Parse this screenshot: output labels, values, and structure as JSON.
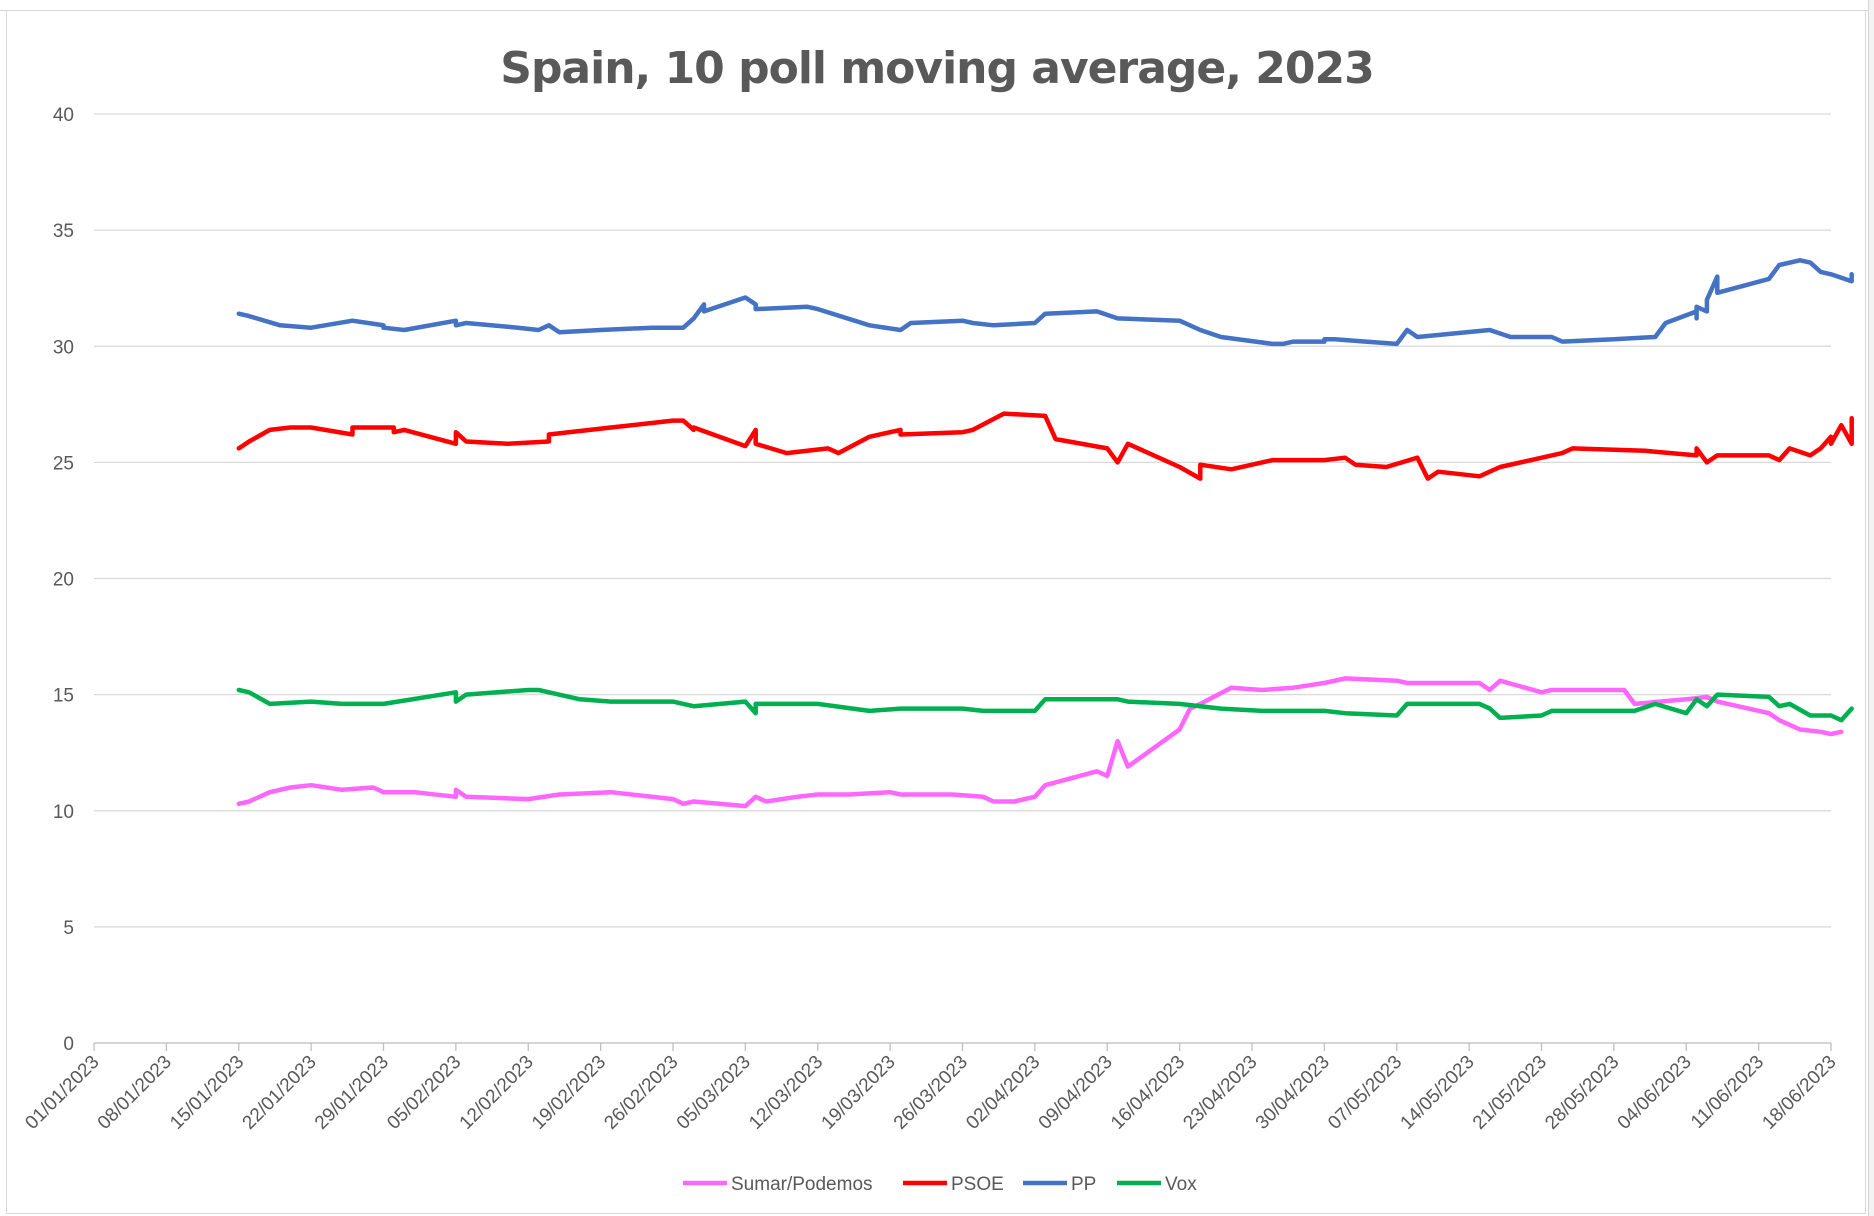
{
  "chart_data": {
    "type": "line",
    "title": "Spain, 10 poll moving average, 2023",
    "xlabel": "",
    "ylabel": "",
    "ylim": [
      0,
      40
    ],
    "y_ticks": [
      "0",
      "5",
      "10",
      "15",
      "20",
      "25",
      "30",
      "35",
      "40"
    ],
    "x_ticks": [
      "01/01/2023",
      "08/01/2023",
      "15/01/2023",
      "22/01/2023",
      "29/01/2023",
      "05/02/2023",
      "12/02/2023",
      "19/02/2023",
      "26/02/2023",
      "05/03/2023",
      "12/03/2023",
      "19/03/2023",
      "26/03/2023",
      "02/04/2023",
      "09/04/2023",
      "16/04/2023",
      "23/04/2023",
      "30/04/2023",
      "07/05/2023",
      "14/05/2023",
      "21/05/2023",
      "28/05/2023",
      "04/06/2023",
      "11/06/2023",
      "18/06/2023"
    ],
    "x_start": "01/01/2023",
    "x_end": "18/06/2023",
    "grid": true,
    "legend_position": "bottom",
    "series": [
      {
        "name": "Sumar/Podemos",
        "color": "#FF66FF",
        "points": [
          [
            "15/01/2023",
            10.3
          ],
          [
            "16/01/2023",
            10.4
          ],
          [
            "18/01/2023",
            10.8
          ],
          [
            "20/01/2023",
            11.0
          ],
          [
            "22/01/2023",
            11.1
          ],
          [
            "25/01/2023",
            10.9
          ],
          [
            "28/01/2023",
            11.0
          ],
          [
            "29/01/2023",
            10.8
          ],
          [
            "01/02/2023",
            10.8
          ],
          [
            "05/02/2023",
            10.6
          ],
          [
            "05/02/2023",
            10.9
          ],
          [
            "06/02/2023",
            10.6
          ],
          [
            "12/02/2023",
            10.5
          ],
          [
            "15/02/2023",
            10.7
          ],
          [
            "20/02/2023",
            10.8
          ],
          [
            "26/02/2023",
            10.5
          ],
          [
            "27/02/2023",
            10.3
          ],
          [
            "28/02/2023",
            10.4
          ],
          [
            "05/03/2023",
            10.2
          ],
          [
            "06/03/2023",
            10.6
          ],
          [
            "07/03/2023",
            10.4
          ],
          [
            "10/03/2023",
            10.6
          ],
          [
            "12/03/2023",
            10.7
          ],
          [
            "15/03/2023",
            10.7
          ],
          [
            "19/03/2023",
            10.8
          ],
          [
            "20/03/2023",
            10.7
          ],
          [
            "25/03/2023",
            10.7
          ],
          [
            "28/03/2023",
            10.6
          ],
          [
            "29/03/2023",
            10.4
          ],
          [
            "31/03/2023",
            10.4
          ],
          [
            "02/04/2023",
            10.6
          ],
          [
            "03/04/2023",
            11.1
          ],
          [
            "08/04/2023",
            11.7
          ],
          [
            "09/04/2023",
            11.5
          ],
          [
            "10/04/2023",
            13.0
          ],
          [
            "11/04/2023",
            11.9
          ],
          [
            "16/04/2023",
            13.5
          ],
          [
            "17/04/2023",
            14.4
          ],
          [
            "18/04/2023",
            14.6
          ],
          [
            "21/04/2023",
            15.3
          ],
          [
            "24/04/2023",
            15.2
          ],
          [
            "27/04/2023",
            15.3
          ],
          [
            "30/04/2023",
            15.5
          ],
          [
            "02/05/2023",
            15.7
          ],
          [
            "07/05/2023",
            15.6
          ],
          [
            "08/05/2023",
            15.5
          ],
          [
            "15/05/2023",
            15.5
          ],
          [
            "16/05/2023",
            15.2
          ],
          [
            "17/05/2023",
            15.6
          ],
          [
            "21/05/2023",
            15.1
          ],
          [
            "22/05/2023",
            15.2
          ],
          [
            "29/05/2023",
            15.2
          ],
          [
            "30/05/2023",
            14.6
          ],
          [
            "04/06/2023",
            14.8
          ],
          [
            "06/06/2023",
            14.9
          ],
          [
            "07/06/2023",
            14.7
          ],
          [
            "12/06/2023",
            14.2
          ],
          [
            "13/06/2023",
            13.9
          ],
          [
            "14/06/2023",
            13.7
          ],
          [
            "15/06/2023",
            13.5
          ],
          [
            "17/06/2023",
            13.4
          ],
          [
            "18/06/2023",
            13.3
          ],
          [
            "19/06/2023",
            13.4
          ],
          [
            "19/06/2023",
            13.4
          ]
        ]
      },
      {
        "name": "PSOE",
        "color": "#FF0000",
        "points": [
          [
            "15/01/2023",
            25.6
          ],
          [
            "16/01/2023",
            25.9
          ],
          [
            "18/01/2023",
            26.4
          ],
          [
            "20/01/2023",
            26.5
          ],
          [
            "22/01/2023",
            26.5
          ],
          [
            "26/01/2023",
            26.2
          ],
          [
            "26/01/2023",
            26.5
          ],
          [
            "30/01/2023",
            26.5
          ],
          [
            "30/01/2023",
            26.3
          ],
          [
            "31/01/2023",
            26.4
          ],
          [
            "05/02/2023",
            25.8
          ],
          [
            "05/02/2023",
            26.3
          ],
          [
            "06/02/2023",
            25.9
          ],
          [
            "10/02/2023",
            25.8
          ],
          [
            "14/02/2023",
            25.9
          ],
          [
            "14/02/2023",
            26.2
          ],
          [
            "20/02/2023",
            26.5
          ],
          [
            "26/02/2023",
            26.8
          ],
          [
            "27/02/2023",
            26.8
          ],
          [
            "28/02/2023",
            26.4
          ],
          [
            "28/02/2023",
            26.5
          ],
          [
            "05/03/2023",
            25.7
          ],
          [
            "06/03/2023",
            26.4
          ],
          [
            "06/03/2023",
            25.8
          ],
          [
            "09/03/2023",
            25.4
          ],
          [
            "13/03/2023",
            25.6
          ],
          [
            "14/03/2023",
            25.4
          ],
          [
            "17/03/2023",
            26.1
          ],
          [
            "20/03/2023",
            26.4
          ],
          [
            "20/03/2023",
            26.2
          ],
          [
            "26/03/2023",
            26.3
          ],
          [
            "27/03/2023",
            26.4
          ],
          [
            "30/03/2023",
            27.1
          ],
          [
            "03/04/2023",
            27.0
          ],
          [
            "04/04/2023",
            26.0
          ],
          [
            "09/04/2023",
            25.6
          ],
          [
            "10/04/2023",
            25.0
          ],
          [
            "11/04/2023",
            25.8
          ],
          [
            "16/04/2023",
            24.8
          ],
          [
            "18/04/2023",
            24.3
          ],
          [
            "18/04/2023",
            24.9
          ],
          [
            "21/04/2023",
            24.7
          ],
          [
            "25/04/2023",
            25.1
          ],
          [
            "30/04/2023",
            25.1
          ],
          [
            "02/05/2023",
            25.2
          ],
          [
            "03/05/2023",
            24.9
          ],
          [
            "06/05/2023",
            24.8
          ],
          [
            "09/05/2023",
            25.2
          ],
          [
            "10/05/2023",
            24.3
          ],
          [
            "11/05/2023",
            24.6
          ],
          [
            "15/05/2023",
            24.4
          ],
          [
            "17/05/2023",
            24.8
          ],
          [
            "20/05/2023",
            25.1
          ],
          [
            "23/05/2023",
            25.4
          ],
          [
            "24/05/2023",
            25.6
          ],
          [
            "31/05/2023",
            25.5
          ],
          [
            "05/06/2023",
            25.3
          ],
          [
            "05/06/2023",
            25.6
          ],
          [
            "06/06/2023",
            25.0
          ],
          [
            "07/06/2023",
            25.3
          ],
          [
            "12/06/2023",
            25.3
          ],
          [
            "13/06/2023",
            25.1
          ],
          [
            "14/06/2023",
            25.6
          ],
          [
            "16/06/2023",
            25.3
          ],
          [
            "17/06/2023",
            25.6
          ],
          [
            "18/06/2023",
            26.1
          ],
          [
            "18/06/2023",
            25.8
          ],
          [
            "19/06/2023",
            26.6
          ],
          [
            "20/06/2023",
            25.8
          ],
          [
            "20/06/2023",
            26.9
          ]
        ]
      },
      {
        "name": "PP",
        "color": "#4472C4",
        "points": [
          [
            "15/01/2023",
            31.4
          ],
          [
            "16/01/2023",
            31.3
          ],
          [
            "19/01/2023",
            30.9
          ],
          [
            "22/01/2023",
            30.8
          ],
          [
            "26/01/2023",
            31.1
          ],
          [
            "29/01/2023",
            30.9
          ],
          [
            "29/01/2023",
            30.8
          ],
          [
            "31/01/2023",
            30.7
          ],
          [
            "05/02/2023",
            31.1
          ],
          [
            "05/02/2023",
            30.9
          ],
          [
            "06/02/2023",
            31.0
          ],
          [
            "11/02/2023",
            30.8
          ],
          [
            "13/02/2023",
            30.7
          ],
          [
            "14/02/2023",
            30.9
          ],
          [
            "15/02/2023",
            30.6
          ],
          [
            "19/02/2023",
            30.7
          ],
          [
            "24/02/2023",
            30.8
          ],
          [
            "27/02/2023",
            30.8
          ],
          [
            "28/02/2023",
            31.2
          ],
          [
            "29/02/2023",
            31.8
          ],
          [
            "01/03/2023",
            31.5
          ],
          [
            "05/03/2023",
            32.1
          ],
          [
            "06/03/2023",
            31.8
          ],
          [
            "06/03/2023",
            31.6
          ],
          [
            "11/03/2023",
            31.7
          ],
          [
            "12/03/2023",
            31.6
          ],
          [
            "17/03/2023",
            30.9
          ],
          [
            "20/03/2023",
            30.7
          ],
          [
            "21/03/2023",
            31.0
          ],
          [
            "26/03/2023",
            31.1
          ],
          [
            "27/03/2023",
            31.0
          ],
          [
            "29/03/2023",
            30.9
          ],
          [
            "02/04/2023",
            31.0
          ],
          [
            "03/04/2023",
            31.4
          ],
          [
            "08/04/2023",
            31.5
          ],
          [
            "10/04/2023",
            31.2
          ],
          [
            "16/04/2023",
            31.1
          ],
          [
            "18/04/2023",
            30.7
          ],
          [
            "20/04/2023",
            30.4
          ],
          [
            "25/04/2023",
            30.1
          ],
          [
            "26/04/2023",
            30.1
          ],
          [
            "27/04/2023",
            30.2
          ],
          [
            "30/04/2023",
            30.2
          ],
          [
            "30/04/2023",
            30.3
          ],
          [
            "01/05/2023",
            30.3
          ],
          [
            "04/05/2023",
            30.2
          ],
          [
            "07/05/2023",
            30.1
          ],
          [
            "08/05/2023",
            30.7
          ],
          [
            "09/05/2023",
            30.4
          ],
          [
            "16/05/2023",
            30.7
          ],
          [
            "18/05/2023",
            30.4
          ],
          [
            "22/05/2023",
            30.4
          ],
          [
            "23/05/2023",
            30.2
          ],
          [
            "28/05/2023",
            30.3
          ],
          [
            "01/06/2023",
            30.4
          ],
          [
            "02/06/2023",
            31.0
          ],
          [
            "05/06/2023",
            31.5
          ],
          [
            "05/06/2023",
            31.2
          ],
          [
            "05/06/2023",
            31.7
          ],
          [
            "06/06/2023",
            31.5
          ],
          [
            "06/06/2023",
            32.0
          ],
          [
            "07/06/2023",
            33.0
          ],
          [
            "07/06/2023",
            32.3
          ],
          [
            "12/06/2023",
            32.9
          ],
          [
            "13/06/2023",
            33.5
          ],
          [
            "15/06/2023",
            33.7
          ],
          [
            "16/06/2023",
            33.6
          ],
          [
            "17/06/2023",
            33.2
          ],
          [
            "18/06/2023",
            33.1
          ],
          [
            "20/06/2023",
            32.8
          ],
          [
            "20/06/2023",
            33.1
          ]
        ]
      },
      {
        "name": "Vox",
        "color": "#00B050",
        "points": [
          [
            "15/01/2023",
            15.2
          ],
          [
            "16/01/2023",
            15.1
          ],
          [
            "18/01/2023",
            14.6
          ],
          [
            "22/01/2023",
            14.7
          ],
          [
            "25/01/2023",
            14.6
          ],
          [
            "29/01/2023",
            14.6
          ],
          [
            "05/02/2023",
            15.1
          ],
          [
            "05/02/2023",
            14.7
          ],
          [
            "06/02/2023",
            15.0
          ],
          [
            "12/02/2023",
            15.2
          ],
          [
            "13/02/2023",
            15.2
          ],
          [
            "14/02/2023",
            15.1
          ],
          [
            "17/02/2023",
            14.8
          ],
          [
            "20/02/2023",
            14.7
          ],
          [
            "26/02/2023",
            14.7
          ],
          [
            "27/02/2023",
            14.6
          ],
          [
            "28/02/2023",
            14.5
          ],
          [
            "05/03/2023",
            14.7
          ],
          [
            "06/03/2023",
            14.2
          ],
          [
            "06/03/2023",
            14.6
          ],
          [
            "12/03/2023",
            14.6
          ],
          [
            "17/03/2023",
            14.3
          ],
          [
            "20/03/2023",
            14.4
          ],
          [
            "26/03/2023",
            14.4
          ],
          [
            "28/03/2023",
            14.3
          ],
          [
            "02/04/2023",
            14.3
          ],
          [
            "03/04/2023",
            14.8
          ],
          [
            "08/04/2023",
            14.8
          ],
          [
            "10/04/2023",
            14.8
          ],
          [
            "11/04/2023",
            14.7
          ],
          [
            "16/04/2023",
            14.6
          ],
          [
            "20/04/2023",
            14.4
          ],
          [
            "24/04/2023",
            14.3
          ],
          [
            "27/04/2023",
            14.3
          ],
          [
            "30/04/2023",
            14.3
          ],
          [
            "02/05/2023",
            14.2
          ],
          [
            "07/05/2023",
            14.1
          ],
          [
            "08/05/2023",
            14.6
          ],
          [
            "15/05/2023",
            14.6
          ],
          [
            "16/05/2023",
            14.4
          ],
          [
            "17/05/2023",
            14.0
          ],
          [
            "21/05/2023",
            14.1
          ],
          [
            "22/05/2023",
            14.3
          ],
          [
            "30/05/2023",
            14.3
          ],
          [
            "01/06/2023",
            14.6
          ],
          [
            "04/06/2023",
            14.2
          ],
          [
            "05/06/2023",
            14.8
          ],
          [
            "06/06/2023",
            14.5
          ],
          [
            "07/06/2023",
            15.0
          ],
          [
            "12/06/2023",
            14.9
          ],
          [
            "13/06/2023",
            14.5
          ],
          [
            "14/06/2023",
            14.6
          ],
          [
            "16/06/2023",
            14.1
          ],
          [
            "18/06/2023",
            14.1
          ],
          [
            "19/06/2023",
            13.9
          ],
          [
            "20/06/2023",
            14.4
          ]
        ]
      }
    ]
  }
}
